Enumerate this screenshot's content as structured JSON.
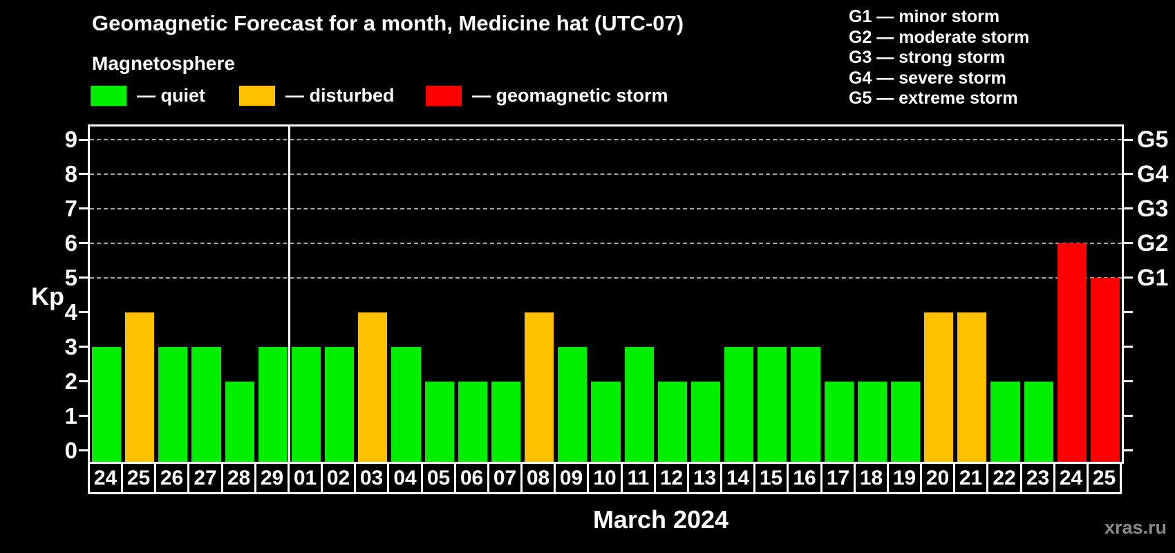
{
  "watermark": "xras.ru",
  "legend": {
    "items": [
      {
        "key": "quiet",
        "label": "— quiet",
        "color": "#00ee00"
      },
      {
        "key": "disturbed",
        "label": "— disturbed",
        "color": "#ffc000"
      },
      {
        "key": "storm",
        "label": "— geomagnetic storm",
        "color": "#ff0000"
      }
    ]
  },
  "g_legend": [
    "G1 — minor storm",
    "G2 — moderate storm",
    "G3 — strong storm",
    "G4 — severe storm",
    "G5 — extreme storm"
  ],
  "chart_data": {
    "type": "bar",
    "title": "Geomagnetic Forecast for a month, Medicine hat (UTC-07)",
    "subtitle": "Magnetosphere",
    "xlabel": "March 2024",
    "ylabel": "Kp",
    "ylim": [
      0,
      9
    ],
    "grid_on": true,
    "grid_values": [
      5,
      6,
      7,
      8,
      9
    ],
    "month_separator_index": 6,
    "categories": [
      "24",
      "25",
      "26",
      "27",
      "28",
      "29",
      "01",
      "02",
      "03",
      "04",
      "05",
      "06",
      "07",
      "08",
      "09",
      "10",
      "11",
      "12",
      "13",
      "14",
      "15",
      "16",
      "17",
      "18",
      "19",
      "20",
      "21",
      "22",
      "23",
      "24",
      "25"
    ],
    "values": [
      3,
      4,
      3,
      3,
      2,
      3,
      3,
      3,
      4,
      3,
      2,
      2,
      2,
      4,
      3,
      2,
      3,
      2,
      2,
      3,
      3,
      3,
      2,
      2,
      2,
      4,
      4,
      2,
      2,
      6,
      5
    ],
    "statuses": [
      "quiet",
      "disturbed",
      "quiet",
      "quiet",
      "quiet",
      "quiet",
      "quiet",
      "quiet",
      "disturbed",
      "quiet",
      "quiet",
      "quiet",
      "quiet",
      "disturbed",
      "quiet",
      "quiet",
      "quiet",
      "quiet",
      "quiet",
      "quiet",
      "quiet",
      "quiet",
      "quiet",
      "quiet",
      "quiet",
      "disturbed",
      "disturbed",
      "quiet",
      "quiet",
      "storm",
      "storm"
    ],
    "colors": {
      "quiet": "#00ee00",
      "disturbed": "#ffc000",
      "storm": "#ff0000"
    },
    "g_levels": [
      {
        "value": 5,
        "label": "G1"
      },
      {
        "value": 6,
        "label": "G2"
      },
      {
        "value": 7,
        "label": "G3"
      },
      {
        "value": 8,
        "label": "G4"
      },
      {
        "value": 9,
        "label": "G5"
      }
    ]
  }
}
